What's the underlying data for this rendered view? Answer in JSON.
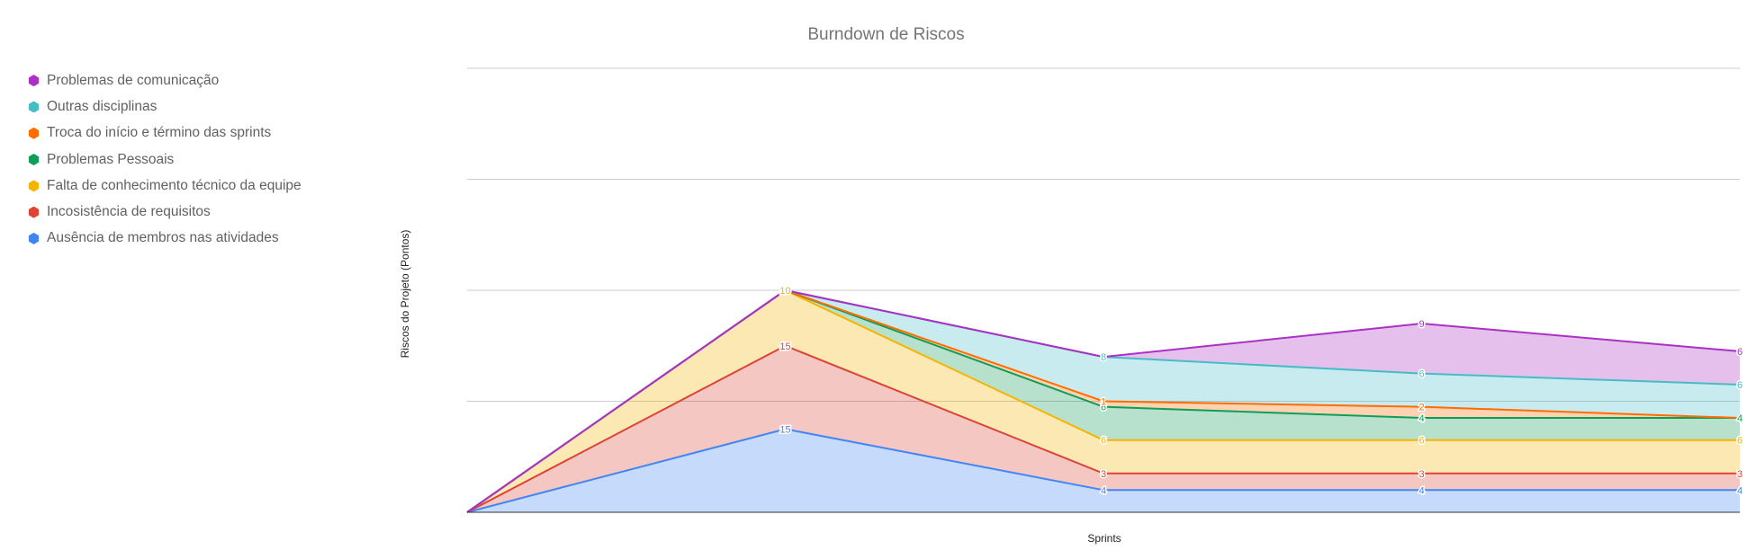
{
  "chart_data": {
    "type": "area",
    "stacked": true,
    "title": "Burndown de Riscos",
    "xlabel": "Sprints",
    "ylabel": "Riscos do Projeto (Pontos)",
    "ylim": [
      0,
      80
    ],
    "grid": true,
    "legend_position": "left",
    "categories": [
      "",
      "",
      "",
      "",
      ""
    ],
    "series": [
      {
        "name": "Ausência de membros nas atividades",
        "color": "#4285f4",
        "values": [
          0,
          15,
          4,
          4,
          4
        ]
      },
      {
        "name": "Incosistência de requisitos",
        "color": "#db4437",
        "values": [
          0,
          15,
          3,
          3,
          3
        ]
      },
      {
        "name": "Falta de conhecimento técnico da equipe",
        "color": "#f4b400",
        "values": [
          0,
          10,
          6,
          6,
          6
        ]
      },
      {
        "name": "Problemas Pessoais",
        "color": "#0f9d58",
        "values": [
          0,
          0,
          6,
          4,
          4
        ]
      },
      {
        "name": "Troca do início e término das sprints",
        "color": "#ff6d01",
        "values": [
          0,
          0,
          1,
          2,
          0
        ]
      },
      {
        "name": "Outras disciplinas",
        "color": "#46bdc6",
        "values": [
          0,
          0,
          8,
          6,
          6
        ]
      },
      {
        "name": "Problemas de comunicação",
        "color": "#ab30c4",
        "values": [
          0,
          0,
          0,
          9,
          6
        ]
      }
    ]
  }
}
